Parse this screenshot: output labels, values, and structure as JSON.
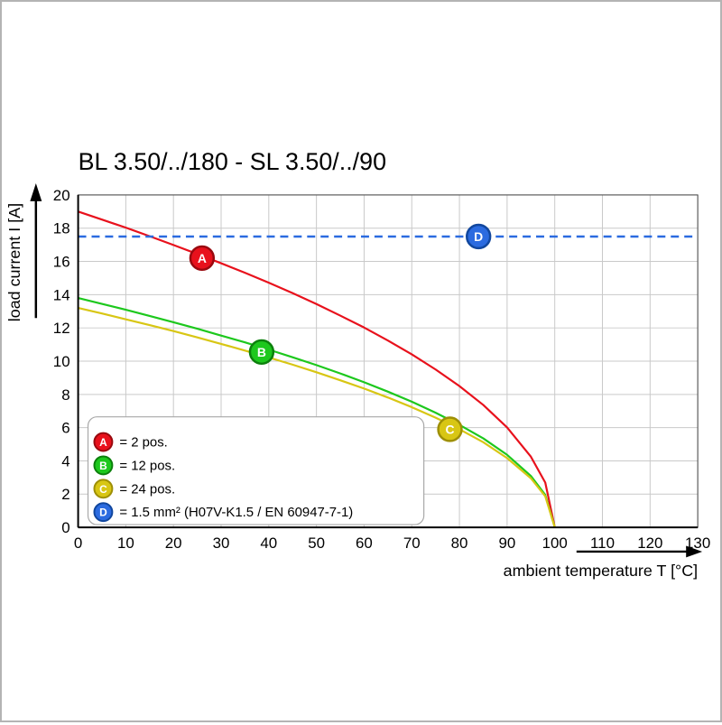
{
  "chart_data": {
    "type": "line",
    "title": "BL 3.50/../180 - SL 3.50/../90",
    "xlabel": "ambient temperature T [°C]",
    "ylabel": "load current I [A]",
    "xlim": [
      0,
      130
    ],
    "ylim": [
      0,
      20
    ],
    "xticks": [
      0,
      10,
      20,
      30,
      40,
      50,
      60,
      70,
      80,
      90,
      100,
      110,
      120,
      130
    ],
    "yticks": [
      0,
      2,
      4,
      6,
      8,
      10,
      12,
      14,
      16,
      18,
      20
    ],
    "grid": true,
    "grid_color": "#c9c9c9",
    "legend_position": "bottom-left",
    "series": [
      {
        "name": "A",
        "legend_label": "= 2 pos.",
        "color": "#e8111c",
        "edge": "#99090f",
        "style": "solid",
        "points": [
          [
            0,
            19
          ],
          [
            5,
            18.52
          ],
          [
            10,
            18.03
          ],
          [
            15,
            17.52
          ],
          [
            20,
            16.99
          ],
          [
            25,
            16.45
          ],
          [
            30,
            15.89
          ],
          [
            35,
            15.32
          ],
          [
            40,
            14.72
          ],
          [
            45,
            14.09
          ],
          [
            50,
            13.44
          ],
          [
            55,
            12.74
          ],
          [
            60,
            12.02
          ],
          [
            65,
            11.24
          ],
          [
            70,
            10.41
          ],
          [
            75,
            9.5
          ],
          [
            80,
            8.5
          ],
          [
            85,
            7.36
          ],
          [
            90,
            6.01
          ],
          [
            95,
            4.25
          ],
          [
            98,
            2.69
          ],
          [
            100,
            0
          ]
        ]
      },
      {
        "name": "B",
        "legend_label": "= 12 pos.",
        "color": "#1dc81d",
        "edge": "#0c800c",
        "style": "solid",
        "points": [
          [
            0,
            13.8
          ],
          [
            5,
            13.45
          ],
          [
            10,
            13.09
          ],
          [
            15,
            12.72
          ],
          [
            20,
            12.34
          ],
          [
            25,
            11.95
          ],
          [
            30,
            11.54
          ],
          [
            35,
            11.13
          ],
          [
            40,
            10.69
          ],
          [
            45,
            10.23
          ],
          [
            50,
            9.76
          ],
          [
            55,
            9.26
          ],
          [
            60,
            8.73
          ],
          [
            65,
            8.16
          ],
          [
            70,
            7.56
          ],
          [
            75,
            6.9
          ],
          [
            80,
            6.17
          ],
          [
            85,
            5.35
          ],
          [
            90,
            4.36
          ],
          [
            95,
            3.09
          ],
          [
            98,
            1.95
          ],
          [
            100,
            0
          ]
        ]
      },
      {
        "name": "C",
        "legend_label": "= 24 pos.",
        "color": "#d8c614",
        "edge": "#9e8f06",
        "style": "solid",
        "points": [
          [
            0,
            13.2
          ],
          [
            5,
            12.87
          ],
          [
            10,
            12.52
          ],
          [
            15,
            12.17
          ],
          [
            20,
            11.81
          ],
          [
            25,
            11.43
          ],
          [
            30,
            11.04
          ],
          [
            35,
            10.64
          ],
          [
            40,
            10.22
          ],
          [
            45,
            9.79
          ],
          [
            50,
            9.33
          ],
          [
            55,
            8.85
          ],
          [
            60,
            8.35
          ],
          [
            65,
            7.81
          ],
          [
            70,
            7.23
          ],
          [
            75,
            6.6
          ],
          [
            80,
            5.9
          ],
          [
            85,
            5.12
          ],
          [
            90,
            4.17
          ],
          [
            95,
            2.95
          ],
          [
            98,
            1.87
          ],
          [
            100,
            0
          ]
        ]
      },
      {
        "name": "D",
        "legend_label": "= 1.5 mm² (H07V-K1.5 / EN 60947-7-1)",
        "color": "#2b6be0",
        "edge": "#11479e",
        "style": "dashed",
        "points": [
          [
            0,
            17.5
          ],
          [
            130,
            17.5
          ]
        ]
      }
    ],
    "markers": [
      {
        "series": "A",
        "x": 26,
        "y": 16.2
      },
      {
        "series": "B",
        "x": 38.5,
        "y": 10.55
      },
      {
        "series": "C",
        "x": 78,
        "y": 5.9
      },
      {
        "series": "D",
        "x": 84,
        "y": 17.5
      }
    ]
  }
}
